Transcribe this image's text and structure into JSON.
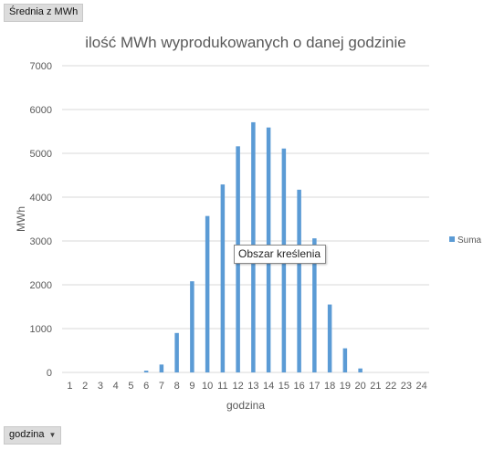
{
  "fields": {
    "value_field": "Średnia z MWh",
    "axis_field": "godzina"
  },
  "tooltip": {
    "text": "Obszar kreślenia"
  },
  "colors": {
    "bar": "#5b9bd5",
    "grid": "#d9d9d9",
    "text": "#595959"
  },
  "chart_data": {
    "type": "bar",
    "title": "ilość MWh wyprodukowanych o danej godzinie",
    "xlabel": "godzina",
    "ylabel": "MWh",
    "ylim": [
      0,
      7000
    ],
    "yticks": [
      0,
      1000,
      2000,
      3000,
      4000,
      5000,
      6000,
      7000
    ],
    "grid": true,
    "legend_position": "right",
    "categories": [
      "1",
      "2",
      "3",
      "4",
      "5",
      "6",
      "7",
      "8",
      "9",
      "10",
      "11",
      "12",
      "13",
      "14",
      "15",
      "16",
      "17",
      "18",
      "19",
      "20",
      "21",
      "22",
      "23",
      "24"
    ],
    "series": [
      {
        "name": "Suma",
        "values": [
          0,
          0,
          0,
          0,
          0,
          40,
          180,
          900,
          2080,
          3570,
          4290,
          5160,
          5710,
          5590,
          5110,
          4170,
          3060,
          1550,
          550,
          90,
          0,
          0,
          0,
          0
        ]
      }
    ]
  }
}
